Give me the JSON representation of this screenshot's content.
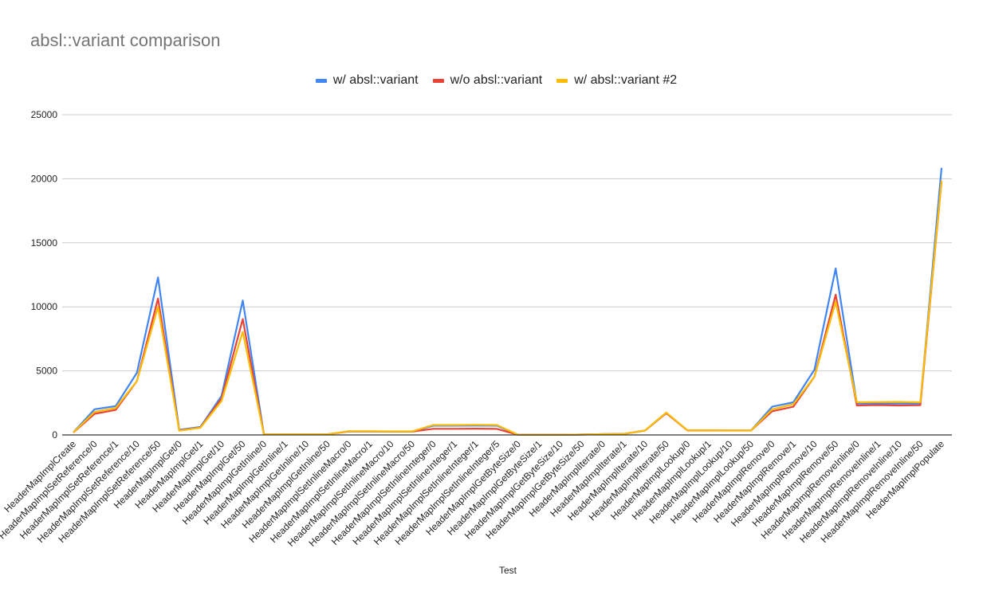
{
  "chart_data": {
    "type": "line",
    "title": "absl::variant comparison",
    "xlabel": "Test",
    "ylabel": "",
    "ylim": [
      0,
      25000
    ],
    "yticks": [
      0,
      5000,
      10000,
      15000,
      20000,
      25000
    ],
    "grid": true,
    "legend_position": "top",
    "categories": [
      "HeaderMapImplCreate",
      "HeaderMapImplSetReference/0",
      "HeaderMapImplSetReference/1",
      "HeaderMapImplSetReference/10",
      "HeaderMapImplSetReference/50",
      "HeaderMapImplGet/0",
      "HeaderMapImplGet/1",
      "HeaderMapImplGet/10",
      "HeaderMapImplGet/50",
      "HeaderMapImplGetInline/0",
      "HeaderMapImplGetInline/1",
      "HeaderMapImplGetInline/10",
      "HeaderMapImplGetInline/50",
      "HeaderMapImplSetInlineMacro/0",
      "HeaderMapImplSetInlineMacro/1",
      "HeaderMapImplSetInlineMacro/10",
      "HeaderMapImplSetInlineMacro/50",
      "HeaderMapImplSetInlineInteger/0",
      "HeaderMapImplSetInlineInteger/1",
      "HeaderMapImplSetInlineInteger/1",
      "HeaderMapImplSetInlineInteger/5",
      "HeaderMapImplGetByteSize/0",
      "HeaderMapImplGetByteSize/1",
      "HeaderMapImplGetByteSize/10",
      "HeaderMapImplGetByteSize/50",
      "HeaderMapImplIterate/0",
      "HeaderMapImplIterate/1",
      "HeaderMapImplIterate/10",
      "HeaderMapImplIterate/50",
      "HeaderMapImplLookup/0",
      "HeaderMapImplLookup/1",
      "HeaderMapImplLookup/10",
      "HeaderMapImplLookup/50",
      "HeaderMapImplRemove/0",
      "HeaderMapImplRemove/1",
      "HeaderMapImplRemove/10",
      "HeaderMapImplRemove/50",
      "HeaderMapImplRemoveInline/0",
      "HeaderMapImplRemoveInline/1",
      "HeaderMapImplRemoveInline/10",
      "HeaderMapImplRemoveInline/50",
      "HeaderMapImplPopulate"
    ],
    "series": [
      {
        "name": "w/ absl::variant",
        "color": "#4285f4",
        "values": [
          200,
          2000,
          2250,
          4850,
          12300,
          400,
          620,
          3050,
          10500,
          50,
          50,
          50,
          50,
          280,
          280,
          270,
          270,
          720,
          720,
          730,
          720,
          10,
          10,
          15,
          30,
          60,
          80,
          350,
          1720,
          360,
          360,
          350,
          350,
          2200,
          2550,
          5100,
          13000,
          2450,
          2450,
          2450,
          2450,
          20850
        ]
      },
      {
        "name": "w/o absl::variant",
        "color": "#ea4335",
        "values": [
          180,
          1650,
          1950,
          4200,
          10650,
          350,
          580,
          2850,
          9050,
          50,
          50,
          50,
          50,
          270,
          270,
          260,
          260,
          480,
          480,
          490,
          470,
          10,
          10,
          15,
          30,
          60,
          80,
          340,
          1700,
          350,
          350,
          340,
          340,
          1850,
          2200,
          4550,
          10950,
          2300,
          2330,
          2300,
          2320,
          19800
        ]
      },
      {
        "name": "w/ absl::variant #2",
        "color": "#fbbc04",
        "values": [
          190,
          1800,
          2100,
          4200,
          10000,
          330,
          560,
          2650,
          8050,
          50,
          50,
          50,
          50,
          290,
          290,
          280,
          280,
          780,
          780,
          790,
          780,
          10,
          10,
          15,
          30,
          60,
          80,
          350,
          1750,
          360,
          360,
          350,
          350,
          2000,
          2400,
          4550,
          10400,
          2550,
          2570,
          2580,
          2550,
          19850
        ]
      }
    ]
  }
}
